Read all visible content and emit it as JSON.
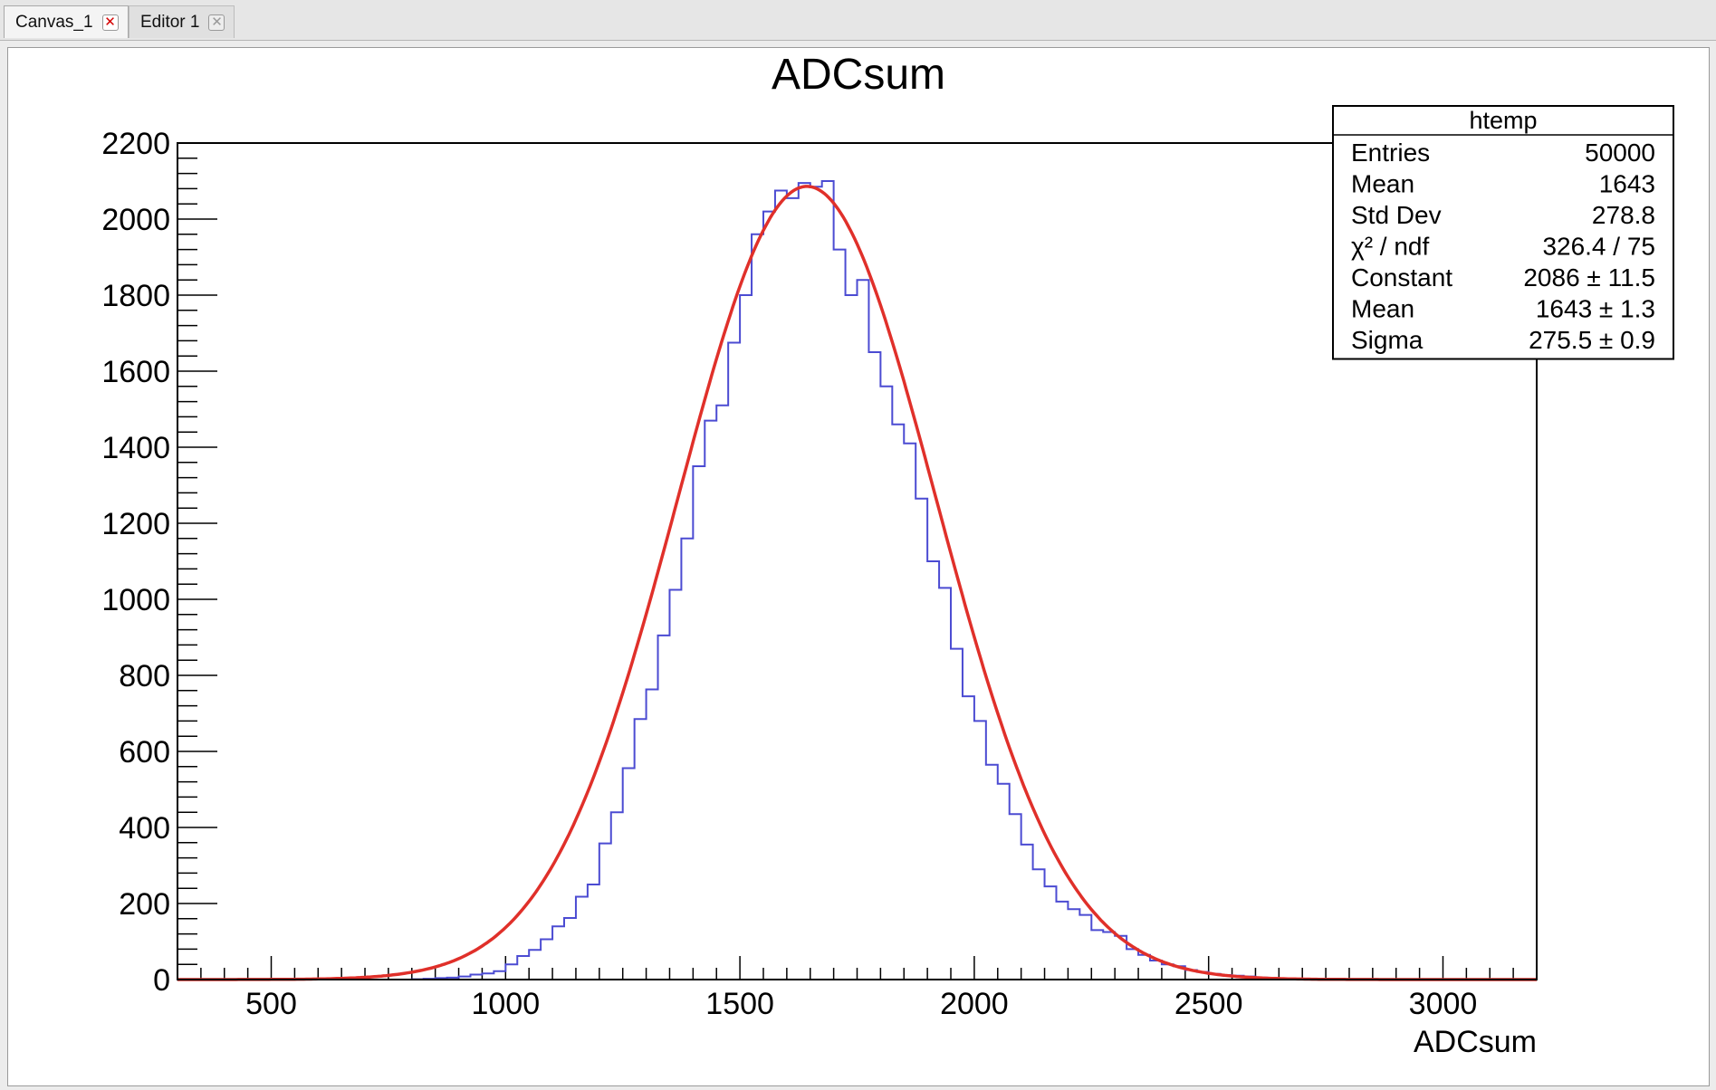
{
  "tabs": [
    {
      "label": "Canvas_1",
      "close_icon": "close-icon-red"
    },
    {
      "label": "Editor 1",
      "close_icon": "close-icon-gray"
    }
  ],
  "colors": {
    "histogram": "#4b4bd2",
    "fit": "#e0302a",
    "axis": "#000000"
  },
  "chart_data": {
    "type": "histogram",
    "title": "ADCsum",
    "xlabel": "ADCsum",
    "ylabel": "",
    "xlim": [
      300,
      3200
    ],
    "ylim": [
      0,
      2200
    ],
    "xticks": [
      500,
      1000,
      1500,
      2000,
      2500,
      3000
    ],
    "yticks": [
      0,
      200,
      400,
      600,
      800,
      1000,
      1200,
      1400,
      1600,
      1800,
      2000,
      2200
    ],
    "grid": false,
    "histogram": {
      "name": "htemp",
      "bin_start": 800,
      "bin_width": 25,
      "values": [
        1,
        2,
        4,
        5,
        8,
        13,
        16,
        22,
        40,
        62,
        78,
        106,
        140,
        162,
        218,
        250,
        358,
        440,
        556,
        685,
        763,
        905,
        1025,
        1160,
        1350,
        1470,
        1510,
        1675,
        1800,
        1960,
        2020,
        2075,
        2055,
        2095,
        2085,
        2100,
        1920,
        1800,
        1840,
        1650,
        1560,
        1460,
        1410,
        1265,
        1100,
        1030,
        870,
        745,
        680,
        565,
        515,
        435,
        355,
        290,
        245,
        205,
        185,
        170,
        130,
        125,
        115,
        80,
        65,
        50,
        40,
        35,
        25,
        20,
        15,
        12,
        10,
        8,
        5,
        4,
        3,
        2,
        2,
        1,
        1,
        1
      ]
    },
    "fit": {
      "function": "gaus",
      "constant": 2086,
      "mean": 1643,
      "sigma": 275.5
    },
    "stats_box": {
      "title": "htemp",
      "placement": "top-right",
      "rows": [
        {
          "label": "Entries",
          "value": "50000"
        },
        {
          "label": "Mean",
          "value": "1643"
        },
        {
          "label": "Std Dev",
          "value": "278.8"
        },
        {
          "label": "χ² / ndf",
          "value": "326.4 / 75"
        },
        {
          "label": "Constant",
          "value": "2086 ± 11.5"
        },
        {
          "label": "Mean",
          "value": "1643 ± 1.3"
        },
        {
          "label": "Sigma",
          "value": "275.5 ± 0.9"
        }
      ]
    }
  }
}
